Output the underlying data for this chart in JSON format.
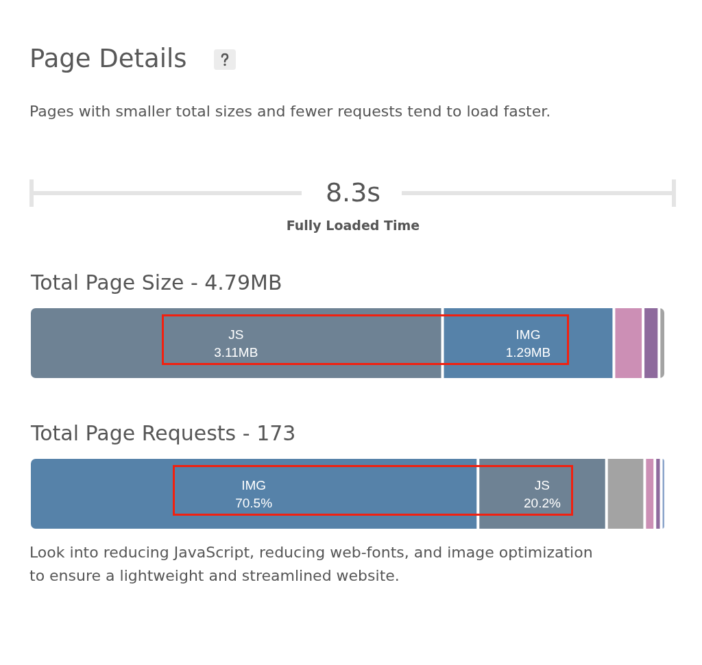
{
  "chart_data": [
    {
      "type": "other",
      "title": "Page Details",
      "subtitle": "Pages with smaller total sizes and fewer requests tend to load faster.",
      "annotations": [
        "8.3s",
        "Fully Loaded Time"
      ]
    },
    {
      "type": "bar",
      "orientation": "horizontal",
      "stacked": true,
      "title": "Total Page Size - 4.79MB",
      "categories": [
        null
      ],
      "xlim": [
        0,
        4.79
      ],
      "legend": false,
      "series": [
        {
          "name": "JS",
          "color": "#6e8294",
          "values": [
            3.11
          ],
          "value_labels": [
            "3.11MB"
          ]
        },
        {
          "name": "IMG",
          "color": "#5682a9",
          "values": [
            1.29
          ],
          "value_labels": [
            "1.29MB"
          ]
        },
        {
          "color": "#cc8fb5",
          "values": [
            0.22
          ]
        },
        {
          "color": "#8e6a9d",
          "values": [
            0.12
          ]
        },
        {
          "color": "#a3a3a3",
          "values": [
            0.05
          ]
        }
      ]
    },
    {
      "type": "bar",
      "orientation": "horizontal",
      "stacked": true,
      "title": "Total Page Requests - 173",
      "categories": [
        null
      ],
      "xlim": [
        0,
        100
      ],
      "legend": false,
      "annotations": [
        "Look into reducing JavaScript, reducing web-fonts, and image optimization to ensure a lightweight and streamlined website."
      ],
      "series": [
        {
          "name": "IMG",
          "color": "#5682a9",
          "values": [
            70.5
          ],
          "value_labels": [
            "70.5%"
          ]
        },
        {
          "name": "JS",
          "color": "#6e8294",
          "values": [
            20.2
          ],
          "value_labels": [
            "20.2%"
          ]
        },
        {
          "color": "#a3a3a3",
          "values": [
            6.0
          ]
        },
        {
          "color": "#cc8fb5",
          "values": [
            1.6
          ]
        },
        {
          "color": "#8e6a9d",
          "values": [
            1.0
          ]
        },
        {
          "color": "#8aa3c9",
          "values": [
            0.7
          ]
        }
      ]
    }
  ]
}
